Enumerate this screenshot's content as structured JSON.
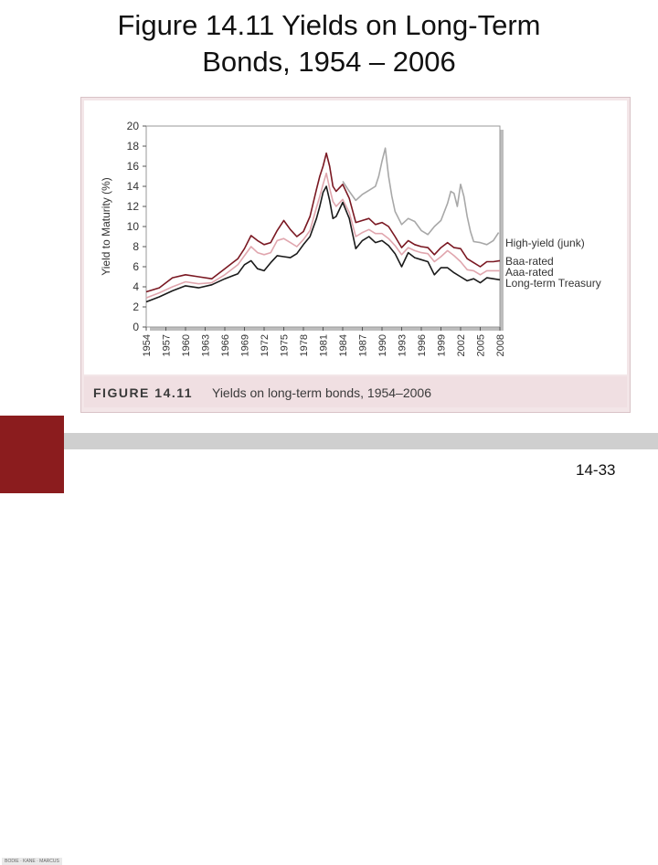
{
  "slide": {
    "title_line1": "Figure 14.11 Yields on Long-Term",
    "title_line2": "Bonds, 1954 – 2006",
    "page_number": "14-33"
  },
  "figure": {
    "label": "FIGURE 14.11",
    "caption": "Yields on long-term bonds, 1954–2006"
  },
  "logo": {
    "text": "BODIE · KANE · MARCUS"
  },
  "colors": {
    "high_yield": "#a8a8a8",
    "baa": "#7a1822",
    "aaa": "#e0a6ae",
    "treasury": "#1a1a1a",
    "accent": "#8b1c1e"
  },
  "chart_data": {
    "type": "line",
    "ylabel": "Yield to Maturity (%)",
    "ylim": [
      0,
      20
    ],
    "yticks": [
      "0",
      "2",
      "4",
      "6",
      "8",
      "10",
      "12",
      "14",
      "16",
      "18",
      "20"
    ],
    "xticks": [
      "1954",
      "1957",
      "1960",
      "1963",
      "1966",
      "1969",
      "1972",
      "1975",
      "1978",
      "1981",
      "1984",
      "1987",
      "1990",
      "1993",
      "1996",
      "1999",
      "2002",
      "2005",
      "2008"
    ],
    "xlim": [
      1954,
      2008
    ],
    "grid": false,
    "legend": "right",
    "series": [
      {
        "name": "High-yield (junk)",
        "color_key": "high_yield",
        "x": [
          1984,
          1985,
          1986,
          1987,
          1988,
          1989,
          1989.5,
          1990,
          1990.5,
          1991,
          1991.5,
          1992,
          1993,
          1994,
          1995,
          1996,
          1997,
          1998,
          1999,
          2000,
          2000.5,
          2001,
          2001.5,
          2002,
          2002.5,
          2003,
          2003.5,
          2004,
          2005,
          2006,
          2007,
          2007.8
        ],
        "y": [
          14.5,
          13.5,
          12.6,
          13.2,
          13.6,
          14.0,
          15.0,
          16.5,
          17.8,
          15.0,
          13.0,
          11.5,
          10.2,
          10.8,
          10.5,
          9.6,
          9.2,
          10.0,
          10.6,
          12.3,
          13.5,
          13.3,
          12.0,
          14.2,
          13.0,
          11.0,
          9.5,
          8.5,
          8.4,
          8.2,
          8.6,
          9.4
        ]
      },
      {
        "name": "Baa-rated",
        "color_key": "baa",
        "x": [
          1954,
          1956,
          1958,
          1960,
          1962,
          1964,
          1966,
          1968,
          1969,
          1970,
          1971,
          1972,
          1973,
          1974,
          1975,
          1976,
          1977,
          1978,
          1979,
          1980,
          1980.5,
          1981,
          1981.5,
          1982,
          1982.5,
          1983,
          1984,
          1985,
          1986,
          1987,
          1988,
          1989,
          1990,
          1991,
          1992,
          1993,
          1994,
          1995,
          1996,
          1997,
          1998,
          1999,
          2000,
          2001,
          2002,
          2003,
          2004,
          2005,
          2006,
          2007,
          2008
        ],
        "y": [
          3.5,
          3.9,
          4.9,
          5.2,
          5.0,
          4.8,
          5.8,
          6.8,
          7.8,
          9.1,
          8.6,
          8.2,
          8.4,
          9.6,
          10.6,
          9.7,
          9.0,
          9.5,
          11.0,
          13.7,
          15.0,
          16.0,
          17.3,
          16.0,
          14.0,
          13.5,
          14.2,
          12.8,
          10.4,
          10.6,
          10.8,
          10.2,
          10.4,
          10.0,
          9.0,
          7.9,
          8.6,
          8.2,
          8.0,
          7.9,
          7.2,
          7.9,
          8.4,
          7.9,
          7.8,
          6.8,
          6.4,
          6.0,
          6.5,
          6.5,
          6.6
        ]
      },
      {
        "name": "Aaa-rated",
        "color_key": "aaa",
        "x": [
          1954,
          1956,
          1958,
          1960,
          1962,
          1964,
          1966,
          1968,
          1969,
          1970,
          1971,
          1972,
          1973,
          1974,
          1975,
          1976,
          1977,
          1978,
          1979,
          1980,
          1980.5,
          1981,
          1981.5,
          1982,
          1982.5,
          1983,
          1984,
          1985,
          1986,
          1987,
          1988,
          1989,
          1990,
          1991,
          1992,
          1993,
          1994,
          1995,
          1996,
          1997,
          1998,
          1999,
          2000,
          2001,
          2002,
          2003,
          2004,
          2005,
          2006,
          2007,
          2008
        ],
        "y": [
          2.9,
          3.4,
          4.0,
          4.5,
          4.3,
          4.4,
          5.2,
          6.2,
          7.1,
          8.0,
          7.4,
          7.2,
          7.4,
          8.6,
          8.8,
          8.4,
          8.0,
          8.7,
          9.6,
          11.9,
          13.0,
          14.2,
          15.3,
          13.8,
          12.5,
          12.0,
          12.7,
          11.4,
          9.0,
          9.4,
          9.7,
          9.3,
          9.3,
          8.8,
          8.1,
          7.2,
          7.9,
          7.6,
          7.4,
          7.3,
          6.5,
          7.0,
          7.6,
          7.1,
          6.5,
          5.7,
          5.6,
          5.2,
          5.6,
          5.6,
          5.6
        ]
      },
      {
        "name": "Long-term Treasury",
        "color_key": "treasury",
        "x": [
          1954,
          1956,
          1958,
          1960,
          1962,
          1964,
          1966,
          1968,
          1969,
          1970,
          1971,
          1972,
          1973,
          1974,
          1975,
          1976,
          1977,
          1978,
          1979,
          1980,
          1980.5,
          1981,
          1981.5,
          1982,
          1982.5,
          1983,
          1984,
          1985,
          1986,
          1987,
          1988,
          1989,
          1990,
          1991,
          1992,
          1993,
          1994,
          1995,
          1996,
          1997,
          1998,
          1999,
          2000,
          2001,
          2002,
          2003,
          2004,
          2005,
          2006,
          2007,
          2008
        ],
        "y": [
          2.5,
          3.0,
          3.6,
          4.1,
          3.9,
          4.2,
          4.8,
          5.3,
          6.2,
          6.6,
          5.8,
          5.6,
          6.4,
          7.1,
          7.0,
          6.9,
          7.3,
          8.2,
          9.0,
          10.8,
          12.0,
          13.4,
          14.0,
          12.6,
          10.8,
          11.0,
          12.4,
          10.8,
          7.8,
          8.6,
          9.0,
          8.4,
          8.6,
          8.1,
          7.3,
          6.0,
          7.4,
          6.9,
          6.7,
          6.5,
          5.2,
          5.9,
          5.9,
          5.4,
          5.0,
          4.6,
          4.8,
          4.4,
          4.9,
          4.8,
          4.7
        ]
      }
    ]
  }
}
